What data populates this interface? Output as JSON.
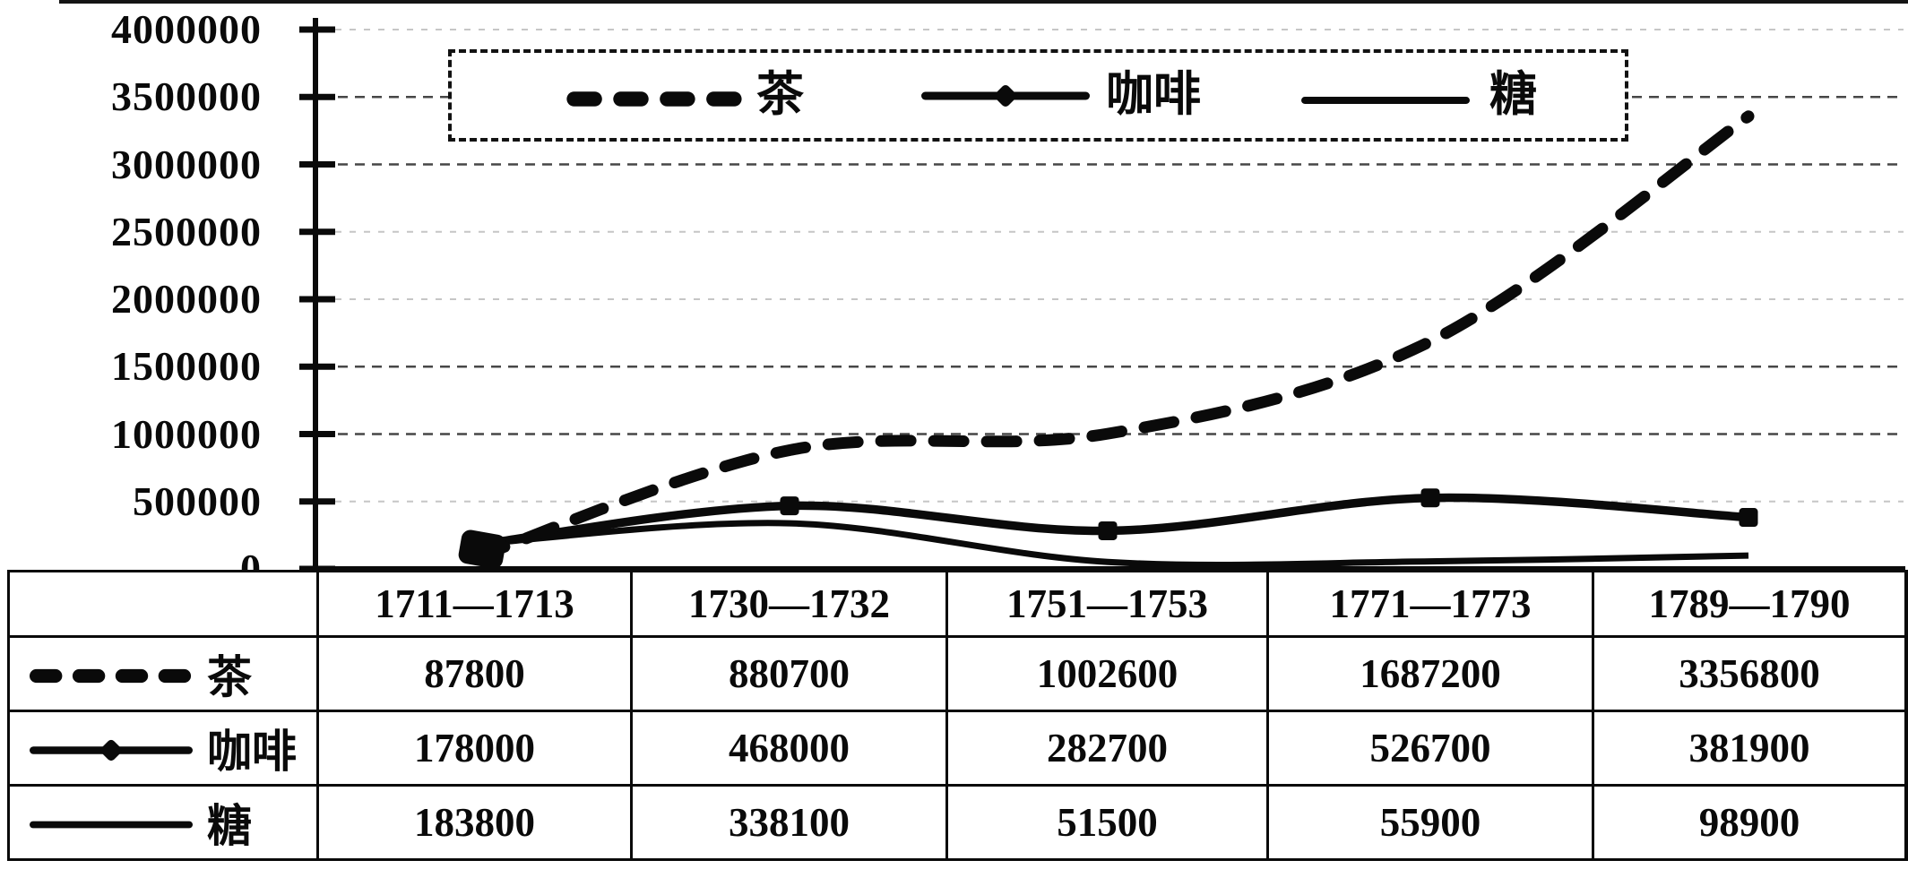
{
  "chart_data": {
    "type": "line",
    "categories": [
      "1711—1713",
      "1730—1732",
      "1751—1753",
      "1771—1773",
      "1789—1790"
    ],
    "series": [
      {
        "name": "茶",
        "line_style": "thick-dashed",
        "values": [
          87800,
          880700,
          1002600,
          1687200,
          3356800
        ]
      },
      {
        "name": "咖啡",
        "line_style": "solid-with-marker",
        "values": [
          178000,
          468000,
          282700,
          526700,
          381900
        ]
      },
      {
        "name": "糖",
        "line_style": "solid-thin",
        "values": [
          183800,
          338100,
          51500,
          55900,
          98900
        ]
      }
    ],
    "ylim": [
      0,
      4000000
    ],
    "ytick_interval": 500000,
    "ytick_labels": [
      "4000000",
      "3500000",
      "3000000",
      "2500000",
      "2000000",
      "1500000",
      "1000000",
      "500000",
      "0"
    ],
    "xlabel": "",
    "ylabel": "",
    "grid": "horizontal-dashed",
    "legend_position": "top-inside-dashed-box"
  },
  "legend": {
    "items": [
      "茶",
      "咖啡",
      "糖"
    ]
  },
  "table": {
    "header_row": [
      "1711—1713",
      "1730—1732",
      "1751—1753",
      "1771—1773",
      "1789—1790"
    ],
    "rows": [
      {
        "label": "茶",
        "values": [
          "87800",
          "880700",
          "1002600",
          "1687200",
          "3356800"
        ]
      },
      {
        "label": "咖啡",
        "values": [
          "178000",
          "468000",
          "282700",
          "526700",
          "381900"
        ]
      },
      {
        "label": "糖",
        "values": [
          "183800",
          "338100",
          "51500",
          "55900",
          "98900"
        ]
      }
    ]
  },
  "colors": {
    "line": "#0a0a0a",
    "grid_dark": "#474747",
    "grid_light": "#c6c6c6",
    "background": "#ffffff"
  }
}
